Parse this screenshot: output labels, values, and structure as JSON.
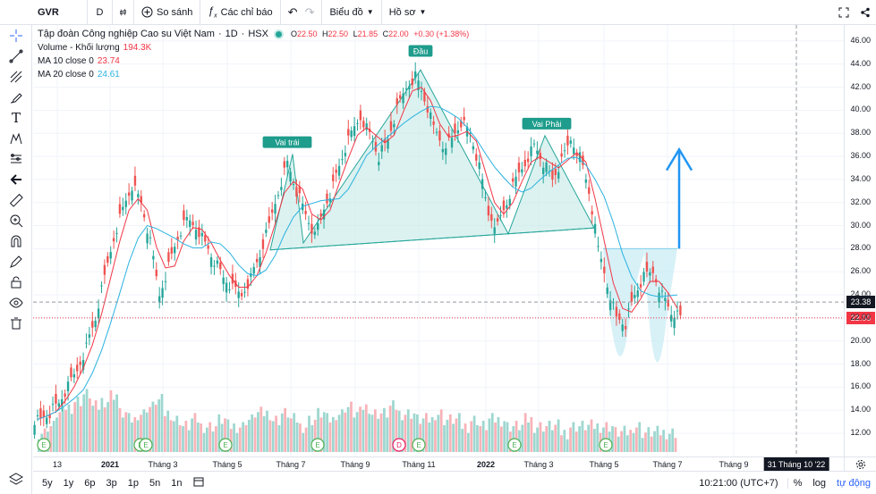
{
  "toolbar": {
    "symbol": "GVR",
    "interval": "D",
    "compare_label": "So sánh",
    "indicators_label": "Các chỉ báo",
    "chart_menu_label": "Biểu đồ",
    "profile_menu_label": "Hồ sơ"
  },
  "legend": {
    "company": "Tập đoàn Công nghiệp Cao su Việt Nam",
    "interval": "1D",
    "exchange": "HSX",
    "open_label": "O",
    "open_value": "22.50",
    "high_label": "H",
    "high_value": "22.50",
    "low_label": "L",
    "low_value": "21.85",
    "close_label": "C",
    "close_value": "22.00",
    "change": "+0.30 (+1.38%)",
    "volume_label": "Volume - Khối lượng",
    "volume_value": "194.3K",
    "ma10_label": "MA 10 close 0",
    "ma10_value": "23.74",
    "ma20_label": "MA 20 close 0",
    "ma20_value": "24.61"
  },
  "annotations": {
    "left_shoulder": "Vai trái",
    "head": "Đầu",
    "right_shoulder": "Vai Phải"
  },
  "price_axis": {
    "ticks": [
      "46.00",
      "44.00",
      "42.00",
      "40.00",
      "38.00",
      "36.00",
      "34.00",
      "32.00",
      "30.00",
      "28.00",
      "26.00",
      "24.00",
      "22.00",
      "20.00",
      "18.00",
      "16.00",
      "14.00",
      "12.00"
    ],
    "crosshair_price": "23.38",
    "last_price": "22.00"
  },
  "time_axis": {
    "labels": [
      "13",
      "2021",
      "Tháng 3",
      "Tháng 5",
      "Tháng 7",
      "Tháng 9",
      "Tháng 11",
      "2022",
      "Tháng 3",
      "Tháng 5",
      "Tháng 7",
      "Tháng 9"
    ],
    "crosshair_date": "31 Tháng 10 '22"
  },
  "bottom_bar": {
    "ranges": [
      "5y",
      "1y",
      "6p",
      "3p",
      "1p",
      "5n",
      "1n"
    ],
    "time": "10:21:00 (UTC+7)",
    "percent": "%",
    "log": "log",
    "auto": "tự động"
  },
  "chart_data": {
    "type": "candlestick",
    "title": "Tập đoàn Công nghiệp Cao su Việt Nam · 1D · HSX",
    "ylim": [
      11,
      47
    ],
    "x_labels": [
      "13",
      "2021",
      "Tháng 3",
      "Tháng 5",
      "Tháng 7",
      "Tháng 9",
      "Tháng 11",
      "2022",
      "Tháng 3",
      "Tháng 5",
      "Tháng 7",
      "Tháng 9"
    ],
    "close_series": [
      13.2,
      13.8,
      14.6,
      16.0,
      17.5,
      19.5,
      22.0,
      25.5,
      29.0,
      31.5,
      33.5,
      32.0,
      28.5,
      24.0,
      26.5,
      29.0,
      30.5,
      30.0,
      28.5,
      27.0,
      25.5,
      24.5,
      24.0,
      25.5,
      27.5,
      30.0,
      33.0,
      35.5,
      33.0,
      31.0,
      29.0,
      31.5,
      33.5,
      36.0,
      38.0,
      39.5,
      38.0,
      36.0,
      37.5,
      40.0,
      42.0,
      43.0,
      41.0,
      38.5,
      37.0,
      37.5,
      39.0,
      38.0,
      35.0,
      31.0,
      30.0,
      32.0,
      34.0,
      35.5,
      37.0,
      35.5,
      34.0,
      35.5,
      37.5,
      36.0,
      33.0,
      28.0,
      25.0,
      22.0,
      21.5,
      24.0,
      25.5,
      26.0,
      24.0,
      22.5,
      22.0
    ],
    "volume_relative": [
      0.2,
      0.3,
      0.5,
      0.6,
      0.7,
      0.8,
      0.6,
      0.7,
      0.8,
      0.5,
      0.4,
      0.5,
      0.6,
      0.7,
      0.5,
      0.4,
      0.3,
      0.4,
      0.3,
      0.3,
      0.4,
      0.3,
      0.3,
      0.4,
      0.5,
      0.5,
      0.4,
      0.5,
      0.4,
      0.3,
      0.4,
      0.5,
      0.4,
      0.5,
      0.6,
      0.5,
      0.6,
      0.5,
      0.5,
      0.6,
      0.5,
      0.5,
      0.4,
      0.4,
      0.5,
      0.4,
      0.4,
      0.3,
      0.4,
      0.3,
      0.4,
      0.4,
      0.3,
      0.3,
      0.4,
      0.3,
      0.3,
      0.3,
      0.2,
      0.3,
      0.3,
      0.3,
      0.3,
      0.3,
      0.2,
      0.2,
      0.3,
      0.2,
      0.2,
      0.2,
      0.2
    ],
    "events": [
      "E",
      "E",
      "E",
      "E",
      "D",
      "E",
      "E",
      "E"
    ],
    "patterns": [
      "head-and-shoulders",
      "cup-and-handle"
    ]
  }
}
